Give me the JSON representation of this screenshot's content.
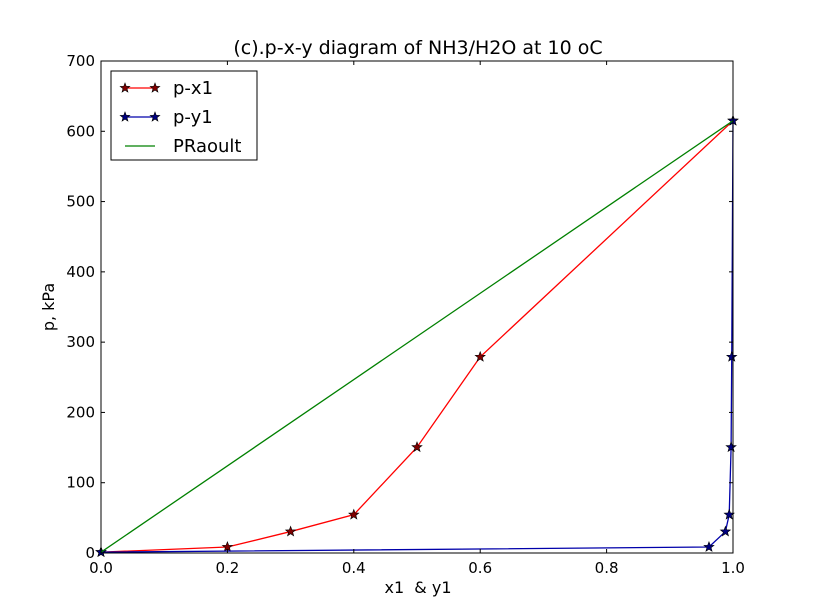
{
  "chart_data": {
    "type": "line",
    "title": "(c).p-x-y diagram of NH3/H2O at 10 oC",
    "xlabel": "x1  & y1",
    "ylabel": "p, kPa",
    "xlim": [
      0.0,
      1.0
    ],
    "ylim": [
      0,
      700
    ],
    "xticks": [
      "0.0",
      "0.2",
      "0.4",
      "0.6",
      "0.8",
      "1.0"
    ],
    "yticks": [
      "0",
      "100",
      "200",
      "300",
      "400",
      "500",
      "600",
      "700"
    ],
    "grid": false,
    "legend_position": "top-left",
    "series": [
      {
        "name": "p-x1",
        "color": "#ff0000",
        "marker": "star",
        "marker_color": "#800000",
        "points": [
          [
            0.0,
            1.2
          ],
          [
            0.2,
            8.5
          ],
          [
            0.3,
            30.5
          ],
          [
            0.4,
            54.5
          ],
          [
            0.5,
            150.5
          ],
          [
            0.6,
            279.0
          ],
          [
            1.0,
            615.0
          ]
        ]
      },
      {
        "name": "p-y1",
        "color": "#0000aa",
        "marker": "star",
        "marker_color": "#000080",
        "points": [
          [
            0.0,
            1.2
          ],
          [
            0.962,
            8.5
          ],
          [
            0.988,
            30.5
          ],
          [
            0.994,
            54.5
          ],
          [
            0.997,
            150.5
          ],
          [
            0.998,
            279.0
          ],
          [
            1.0,
            615.0
          ]
        ]
      },
      {
        "name": "PRaoult",
        "color": "#008000",
        "marker": "none",
        "points": [
          [
            0.0,
            1.2
          ],
          [
            1.0,
            615.0
          ]
        ]
      }
    ]
  }
}
